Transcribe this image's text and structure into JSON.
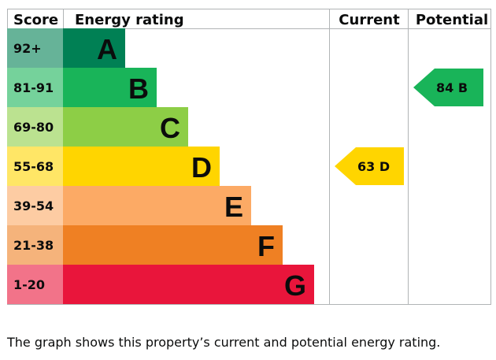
{
  "chart_data": {
    "type": "bar",
    "headers": {
      "score": "Score",
      "rating": "Energy rating",
      "current": "Current",
      "potential": "Potential"
    },
    "bands": [
      {
        "score": "92+",
        "letter": "A",
        "color": "#008054",
        "score_bg": "#66b398"
      },
      {
        "score": "81-91",
        "letter": "B",
        "color": "#19b459",
        "score_bg": "#75d29b"
      },
      {
        "score": "69-80",
        "letter": "C",
        "color": "#8dce46",
        "score_bg": "#bbe290"
      },
      {
        "score": "55-68",
        "letter": "D",
        "color": "#ffd500",
        "score_bg": "#ffe666"
      },
      {
        "score": "39-54",
        "letter": "E",
        "color": "#fcaa65",
        "score_bg": "#fdcca3"
      },
      {
        "score": "21-38",
        "letter": "F",
        "color": "#ef8023",
        "score_bg": "#f5b37b"
      },
      {
        "score": "1-20",
        "letter": "G",
        "color": "#e9153b",
        "score_bg": "#f27389"
      }
    ],
    "current": {
      "value": 63,
      "letter": "D",
      "label": "63 D",
      "color": "#ffd500"
    },
    "potential": {
      "value": 84,
      "letter": "B",
      "label": "84 B",
      "color": "#19b459"
    }
  },
  "caption": "The graph shows this property’s current and potential energy rating."
}
